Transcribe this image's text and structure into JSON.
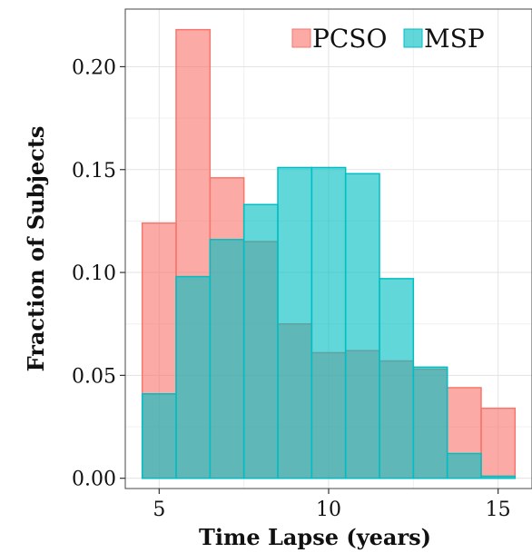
{
  "chart_data": {
    "type": "bar",
    "title": "",
    "xlabel": "Time Lapse (years)",
    "ylabel": "Fraction of Subjects",
    "xlim": [
      4.0,
      16.0
    ],
    "ylim": [
      -0.005,
      0.228
    ],
    "xticks": [
      5,
      10,
      15
    ],
    "xtick_labels": [
      "5",
      "10",
      "15"
    ],
    "yticks": [
      0.0,
      0.05,
      0.1,
      0.15,
      0.2
    ],
    "ytick_labels": [
      "0.00",
      "0.05",
      "0.10",
      "0.15",
      "0.20"
    ],
    "grid": true,
    "legend_position": "top-right",
    "bin_width": 1,
    "bin_centers": [
      5,
      6,
      7,
      8,
      9,
      10,
      11,
      12,
      13,
      14,
      15
    ],
    "series": [
      {
        "name": "PCSO",
        "color": "#F8766D",
        "values": [
          0.124,
          0.218,
          0.146,
          0.115,
          0.075,
          0.061,
          0.062,
          0.057,
          0.053,
          0.044,
          0.034
        ]
      },
      {
        "name": "MSP",
        "color": "#00BFC4",
        "values": [
          0.041,
          0.098,
          0.116,
          0.133,
          0.151,
          0.151,
          0.148,
          0.097,
          0.054,
          0.012,
          0.001
        ]
      }
    ]
  }
}
